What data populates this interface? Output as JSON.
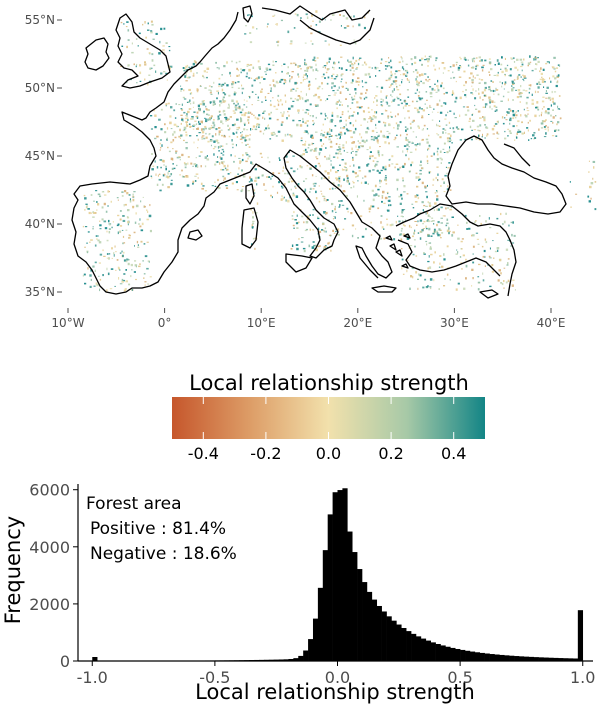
{
  "map": {
    "lat_labels": [
      {
        "label": "55°N",
        "value": 55
      },
      {
        "label": "50°N",
        "value": 50
      },
      {
        "label": "45°N",
        "value": 45
      },
      {
        "label": "40°N",
        "value": 40
      },
      {
        "label": "35°N",
        "value": 35
      }
    ],
    "lon_labels": [
      {
        "label": "10°W",
        "value": -10
      },
      {
        "label": "0°",
        "value": 0
      },
      {
        "label": "10°E",
        "value": 10
      },
      {
        "label": "20°E",
        "value": 20
      },
      {
        "label": "30°E",
        "value": 30
      },
      {
        "label": "40°E",
        "value": 40
      }
    ],
    "lon_range": [
      -10,
      45
    ],
    "lat_range": [
      33.5,
      56
    ],
    "coastline_color": "#000000"
  },
  "legend": {
    "title": "Local relationship strength",
    "colors": [
      "#c6572c",
      "#dd9d67",
      "#f2e1ac",
      "#a7c9a7",
      "#138586"
    ],
    "range": [
      -0.5,
      0.5
    ],
    "ticks": [
      {
        "label": "-0.4",
        "value": -0.4
      },
      {
        "label": "-0.2",
        "value": -0.2
      },
      {
        "label": "0.0",
        "value": 0.0
      },
      {
        "label": "0.2",
        "value": 0.2
      },
      {
        "label": "0.4",
        "value": 0.4
      }
    ]
  },
  "chart_data": {
    "type": "bar",
    "xlabel": "Local relationship strength",
    "ylabel": "Frequency",
    "xlim": [
      -1.05,
      1.05
    ],
    "ylim": [
      0,
      6200
    ],
    "x_ticks": [
      {
        "label": "-1.0",
        "value": -1.0
      },
      {
        "label": "-0.5",
        "value": -0.5
      },
      {
        "label": "0.0",
        "value": 0.0
      },
      {
        "label": "0.5",
        "value": 0.5
      },
      {
        "label": "1.0",
        "value": 1.0
      }
    ],
    "y_ticks": [
      {
        "label": "0",
        "value": 0
      },
      {
        "label": "2000",
        "value": 2000
      },
      {
        "label": "4000",
        "value": 4000
      },
      {
        "label": "6000",
        "value": 6000
      }
    ],
    "bar_color": "#000000",
    "annotations": {
      "title": "Forest area",
      "positive": "Positive : 81.4%",
      "negative": "Negative : 18.6%"
    }
  }
}
